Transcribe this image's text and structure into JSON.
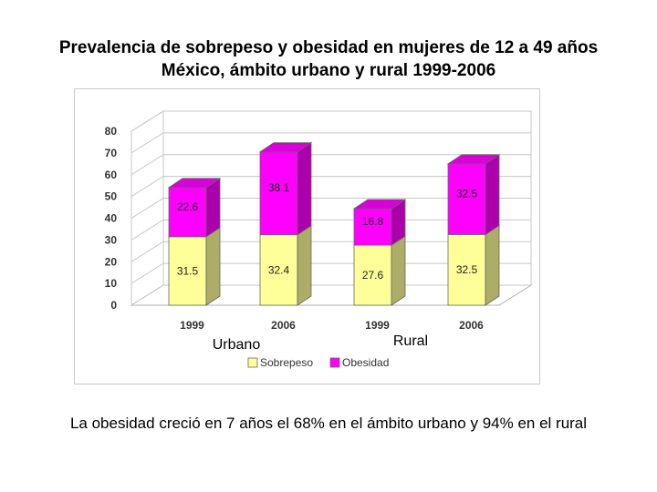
{
  "title_line1": "Prevalencia de sobrepeso y obesidad en mujeres de 12 a 49 años",
  "title_line2": "México, ámbito urbano y rural 1999-2006",
  "footer_note": "La obesidad creció en 7 años el 68% en el ámbito urbano y 94% en el rural",
  "chart_data": {
    "type": "bar",
    "stacked": true,
    "three_d": true,
    "categories": [
      "1999",
      "2006",
      "1999",
      "2006"
    ],
    "groups": [
      {
        "label": "Urbano",
        "categories": [
          "1999",
          "2006"
        ]
      },
      {
        "label": "Rural",
        "categories": [
          "1999",
          "2006"
        ]
      }
    ],
    "series": [
      {
        "name": "Sobrepeso",
        "values": [
          31.5,
          32.4,
          27.6,
          32.5
        ],
        "color": "#ffff99"
      },
      {
        "name": "Obesidad",
        "values": [
          22.6,
          38.1,
          16.8,
          32.5
        ],
        "color": "#ff00ff"
      }
    ],
    "ylim": [
      0,
      80
    ],
    "yticks": [
      "0",
      "10",
      "20",
      "30",
      "40",
      "50",
      "60",
      "70",
      "80"
    ],
    "grid": true,
    "legend_position": "bottom",
    "data_labels": true
  }
}
